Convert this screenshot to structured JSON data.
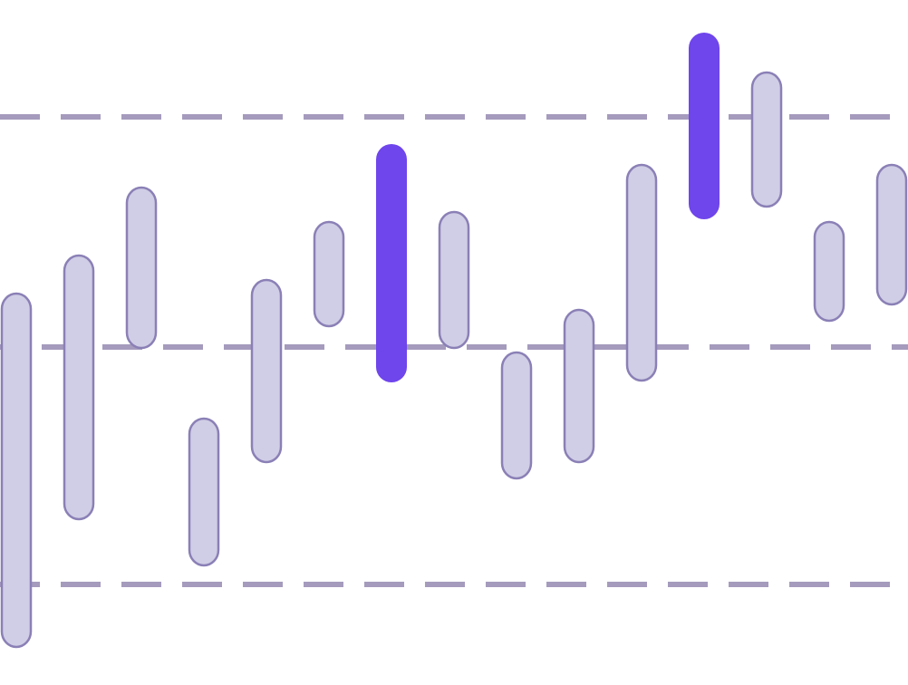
{
  "chart_data": {
    "type": "range-bar",
    "ylim": [
      0,
      756
    ],
    "yticks": [
      111,
      373,
      627
    ],
    "grid": true,
    "grid_color": "#a59bbd",
    "stroke": "#8b80b6",
    "lows": [
      41,
      182,
      371,
      131,
      245,
      395,
      334,
      371,
      227,
      245,
      335,
      514,
      527,
      401,
      419
    ],
    "highs": [
      433,
      475,
      550,
      295,
      448,
      512,
      597,
      523,
      368,
      415,
      575,
      720,
      677,
      512,
      575
    ],
    "colors": [
      "#d0cee6",
      "#d0cee6",
      "#d0cee6",
      "#d0cee6",
      "#d0cee6",
      "#d0cee6",
      "#6f45ec",
      "#d0cee6",
      "#d0cee6",
      "#d0cee6",
      "#d0cee6",
      "#6f45ec",
      "#d0cee6",
      "#d0cee6",
      "#d0cee6"
    ]
  }
}
